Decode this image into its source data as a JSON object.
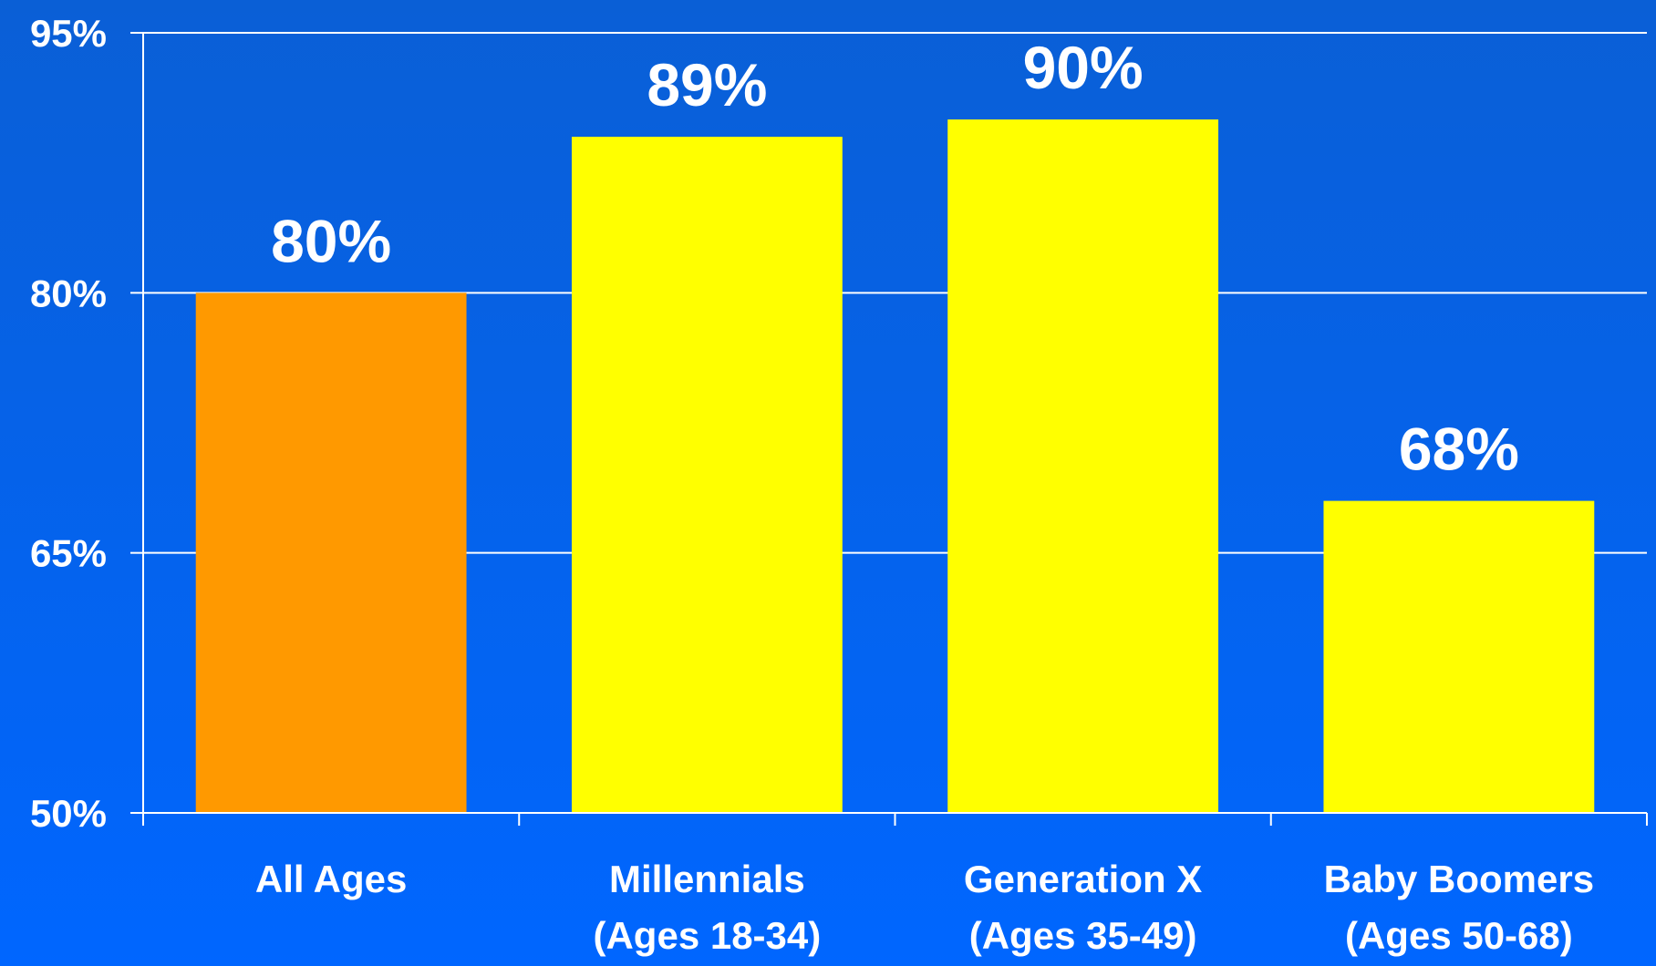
{
  "chart_data": {
    "type": "bar",
    "title": "",
    "xlabel": "",
    "ylabel": "",
    "ylim": [
      50,
      95
    ],
    "yticks": [
      50,
      65,
      80,
      95
    ],
    "ytick_labels": [
      "50%",
      "65%",
      "80%",
      "95%"
    ],
    "grid": true,
    "categories": [
      [
        "All Ages"
      ],
      [
        "Millennials",
        "(Ages 18-34)"
      ],
      [
        "Generation X",
        "(Ages 35-49)"
      ],
      [
        "Baby Boomers",
        "(Ages 50-68)"
      ]
    ],
    "values": [
      80,
      89,
      90,
      68
    ],
    "data_labels": [
      "80%",
      "89%",
      "90%",
      "68%"
    ],
    "bar_colors": [
      "#ff9900",
      "#ffff00",
      "#ffff00",
      "#ffff00"
    ],
    "colors": {
      "background_top": "#0a5fd6",
      "background_bottom": "#0066ff",
      "axis": "#ffffff",
      "text": "#ffffff"
    }
  }
}
